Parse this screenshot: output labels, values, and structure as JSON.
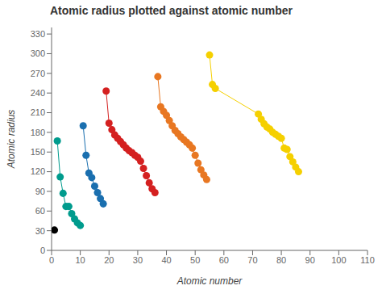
{
  "chart_data": {
    "type": "scatter",
    "title": "Atomic radius plotted against atomic number",
    "x_label": "Atomic number",
    "y_label": "Atomic radius",
    "xlim": [
      0,
      110
    ],
    "ylim": [
      0,
      340
    ],
    "xticks": [
      0,
      10,
      20,
      30,
      40,
      50,
      60,
      70,
      80,
      90,
      100,
      110
    ],
    "yticks": [
      0,
      30,
      60,
      90,
      120,
      150,
      180,
      210,
      240,
      270,
      300,
      330
    ],
    "grid": false,
    "marker": "circle",
    "line_style": "solid",
    "series": [
      {
        "color": "#000000",
        "x": [
          1
        ],
        "values": [
          31
        ]
      },
      {
        "color": "#009B8D",
        "x": [
          2,
          3,
          4,
          5,
          6,
          7,
          8,
          9,
          10
        ],
        "values": [
          167,
          112,
          87,
          67,
          67,
          56,
          48,
          42,
          38
        ]
      },
      {
        "color": "#1a6faf",
        "x": [
          11,
          12,
          13,
          14,
          15,
          16,
          17,
          18
        ],
        "values": [
          190,
          145,
          118,
          111,
          98,
          88,
          79,
          71
        ]
      },
      {
        "color": "#d42020",
        "x": [
          19,
          20,
          21,
          22,
          23,
          24,
          25,
          26,
          27,
          28,
          29,
          30,
          31,
          32,
          33,
          34,
          35,
          36
        ],
        "values": [
          243,
          194,
          184,
          176,
          171,
          166,
          161,
          156,
          152,
          149,
          145,
          142,
          136,
          125,
          114,
          103,
          94,
          88
        ]
      },
      {
        "color": "#e87722",
        "x": [
          37,
          38,
          39,
          40,
          41,
          42,
          43,
          44,
          45,
          46,
          47,
          48,
          49,
          50,
          51,
          52,
          53,
          54
        ],
        "values": [
          265,
          219,
          212,
          206,
          198,
          190,
          183,
          178,
          173,
          169,
          165,
          161,
          156,
          145,
          133,
          123,
          115,
          108
        ]
      },
      {
        "color": "#f5d000",
        "x": [
          55,
          56,
          57,
          72,
          73,
          74,
          75,
          76,
          77,
          78,
          79,
          80,
          81,
          82,
          83,
          84,
          85,
          86
        ],
        "values": [
          298,
          253,
          247,
          208,
          200,
          193,
          188,
          185,
          180,
          177,
          174,
          171,
          156,
          154,
          143,
          135,
          127,
          120
        ]
      }
    ]
  }
}
